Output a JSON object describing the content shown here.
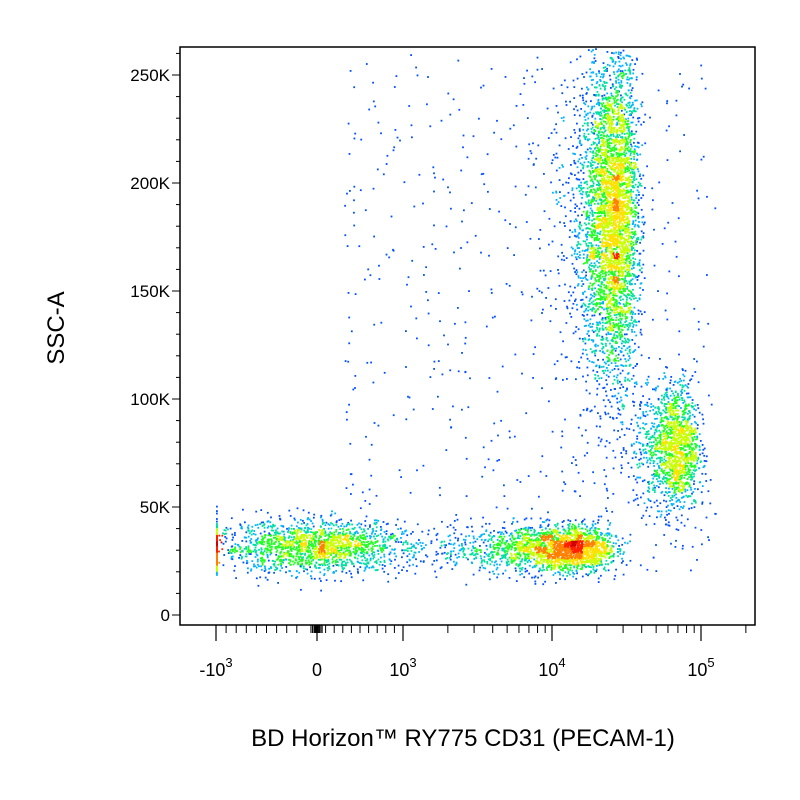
{
  "chart_data": {
    "type": "scatter",
    "subtype": "flow-cytometry-density-dot-plot",
    "xlabel": "BD Horizon™ RY775 CD31 (PECAM-1)",
    "ylabel": "SSC-A",
    "x_scale": "biexponential",
    "y_scale": "linear",
    "ylim": [
      0,
      262144
    ],
    "xlim": [
      -2000,
      200000
    ],
    "y_ticks": [
      {
        "value": 0,
        "label": "0"
      },
      {
        "value": 50000,
        "label": "50K"
      },
      {
        "value": 100000,
        "label": "100K"
      },
      {
        "value": 150000,
        "label": "150K"
      },
      {
        "value": 200000,
        "label": "200K"
      },
      {
        "value": 250000,
        "label": "250K"
      }
    ],
    "x_ticks": [
      {
        "value": -1000,
        "label_base": "-10",
        "label_exp": "3"
      },
      {
        "value": 0,
        "label_base": "0",
        "label_exp": ""
      },
      {
        "value": 1000,
        "label_base": "10",
        "label_exp": "3"
      },
      {
        "value": 10000,
        "label_base": "10",
        "label_exp": "4"
      },
      {
        "value": 100000,
        "label_base": "10",
        "label_exp": "5"
      }
    ],
    "grid": false,
    "legend": "none",
    "color_scale": [
      "#0000cc",
      "#0050ff",
      "#00b4ff",
      "#00e0a0",
      "#20ff20",
      "#c8ff00",
      "#ffe000",
      "#ff8000",
      "#ff2000",
      "#d00000"
    ],
    "populations": [
      {
        "x_center": 0,
        "y_center": 32000,
        "x_spread": 500,
        "y_spread": 6000,
        "count": 1600
      },
      {
        "x_center": 10000,
        "y_center": 31000,
        "x_spread": 7000,
        "y_spread": 5500,
        "count": 2400
      },
      {
        "x_center": 25000,
        "y_center": 185000,
        "x_spread": 6000,
        "y_spread": 38000,
        "count": 4200
      },
      {
        "x_center": 65000,
        "y_center": 78000,
        "x_spread": 15000,
        "y_spread": 15000,
        "count": 1500
      }
    ]
  }
}
